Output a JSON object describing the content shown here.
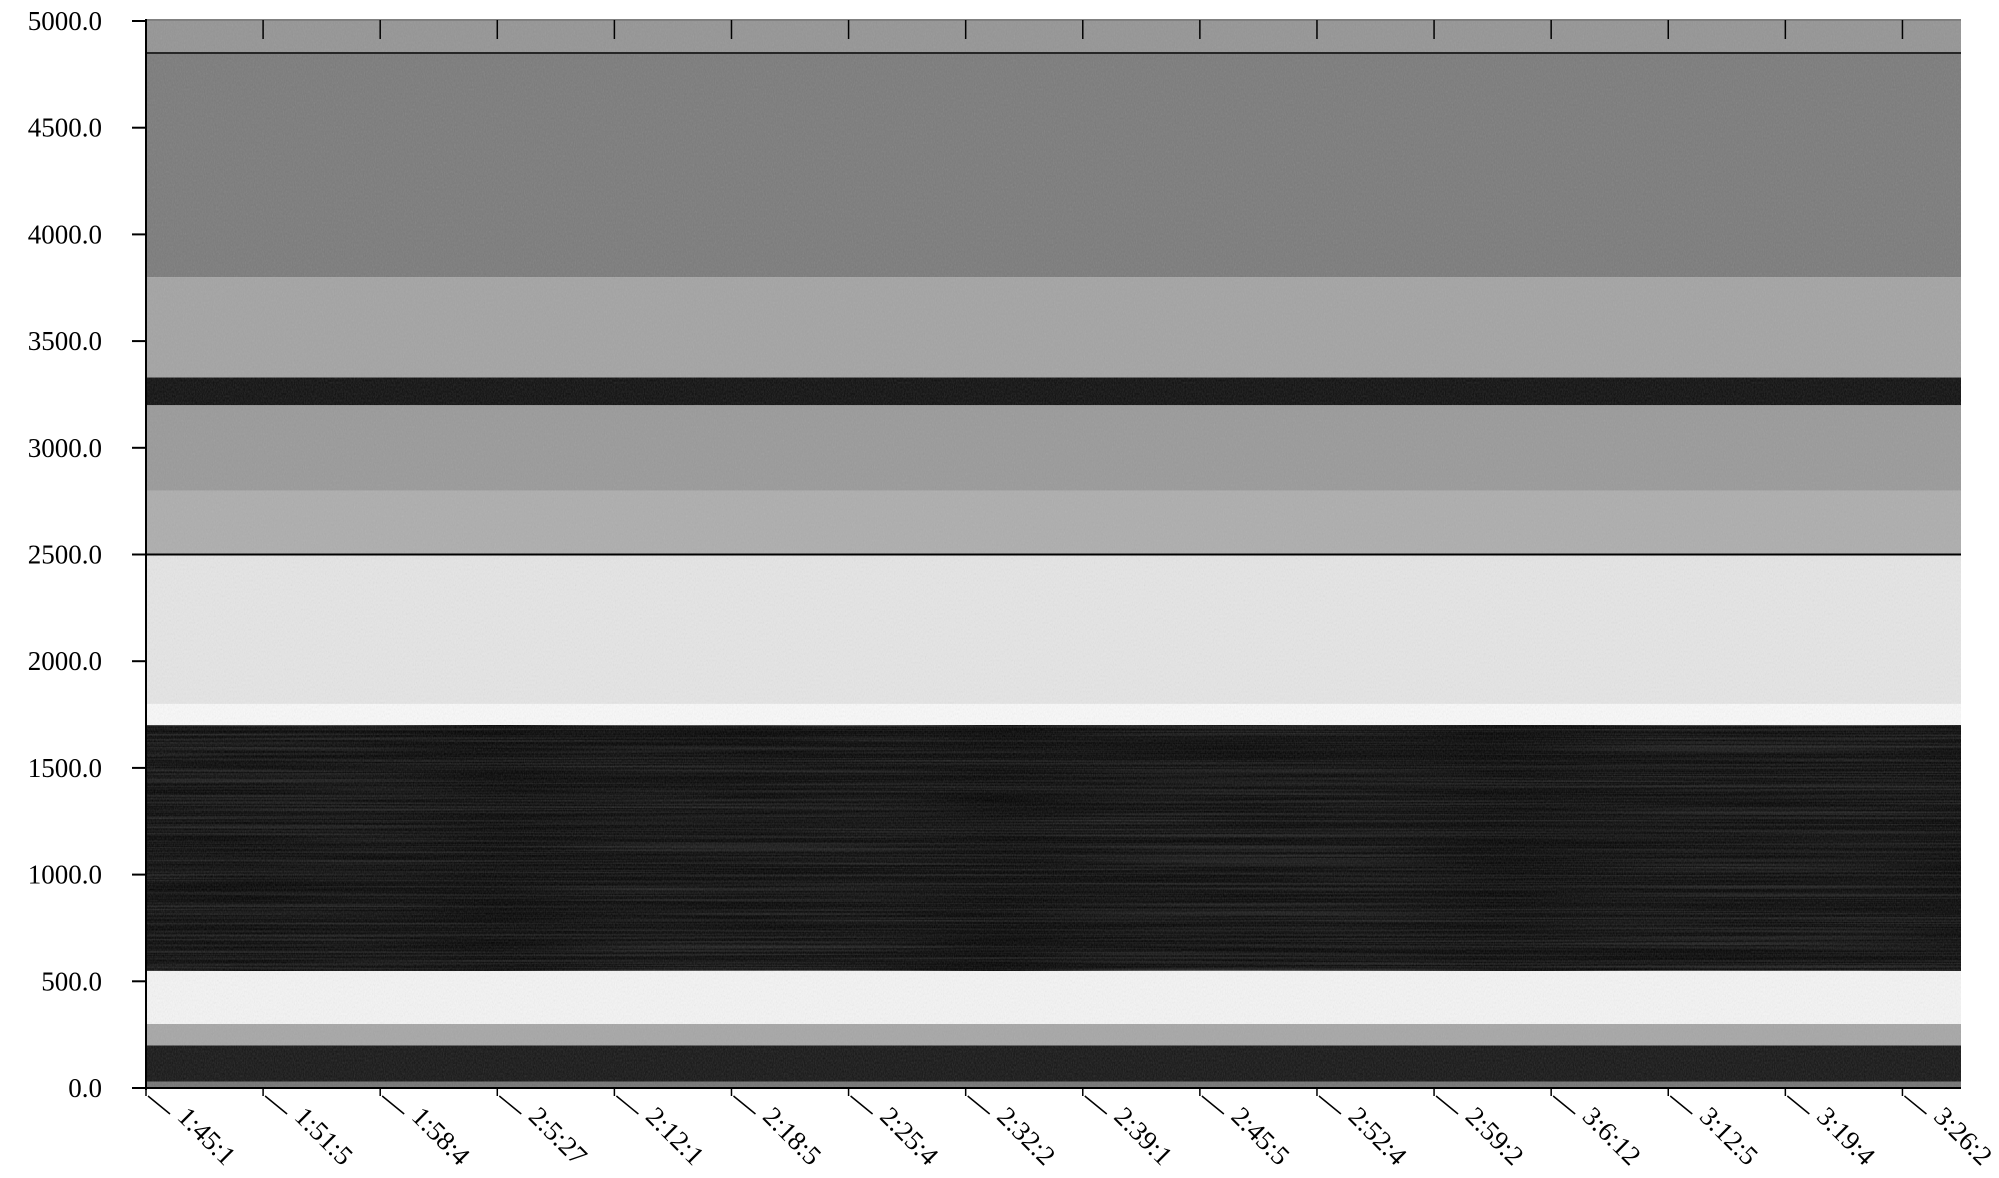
{
  "chart_data": {
    "type": "heatmap",
    "title": "",
    "xlabel": "",
    "ylabel": "",
    "colormap": "grayscale (dark = high intensity)",
    "grid": false,
    "ylim": [
      0,
      5000
    ],
    "yticks": [
      "0.0",
      "500.0",
      "1000.0",
      "1500.0",
      "2000.0",
      "2500.0",
      "3000.0",
      "3500.0",
      "4000.0",
      "4500.0",
      "5000.0"
    ],
    "ytick_values": [
      0,
      500,
      1000,
      1500,
      2000,
      2500,
      3000,
      3500,
      4000,
      4500,
      5000
    ],
    "xticks": [
      "1:45:1",
      "1:51:5",
      "1:58:4",
      "2:5:27",
      "2:12:1",
      "2:18:5",
      "2:25:4",
      "2:32:2",
      "2:39:1",
      "2:45:5",
      "2:52:4",
      "2:59:2",
      "3:6:12",
      "3:12:5",
      "3:19:4",
      "3:26:2"
    ],
    "bands": [
      {
        "y_from": 0,
        "y_to": 30,
        "intensity": 0.55
      },
      {
        "y_from": 30,
        "y_to": 200,
        "intensity": 0.92
      },
      {
        "y_from": 200,
        "y_to": 300,
        "intensity": 0.35
      },
      {
        "y_from": 300,
        "y_to": 550,
        "intensity": 0.04
      },
      {
        "y_from": 550,
        "y_to": 1700,
        "intensity": 0.88
      },
      {
        "y_from": 1700,
        "y_to": 1800,
        "intensity": 0.02
      },
      {
        "y_from": 1800,
        "y_to": 2500,
        "intensity": 0.1
      },
      {
        "y_from": 2500,
        "y_to": 2800,
        "intensity": 0.32
      },
      {
        "y_from": 2800,
        "y_to": 3200,
        "intensity": 0.4
      },
      {
        "y_from": 3200,
        "y_to": 3330,
        "intensity": 0.95
      },
      {
        "y_from": 3330,
        "y_to": 3800,
        "intensity": 0.36
      },
      {
        "y_from": 3800,
        "y_to": 4850,
        "intensity": 0.52
      },
      {
        "y_from": 4850,
        "y_to": 5000,
        "intensity": 0.42
      }
    ],
    "lines": [
      {
        "y": 2500,
        "intensity": 1.0
      },
      {
        "y": 4850,
        "intensity": 0.85
      }
    ]
  }
}
